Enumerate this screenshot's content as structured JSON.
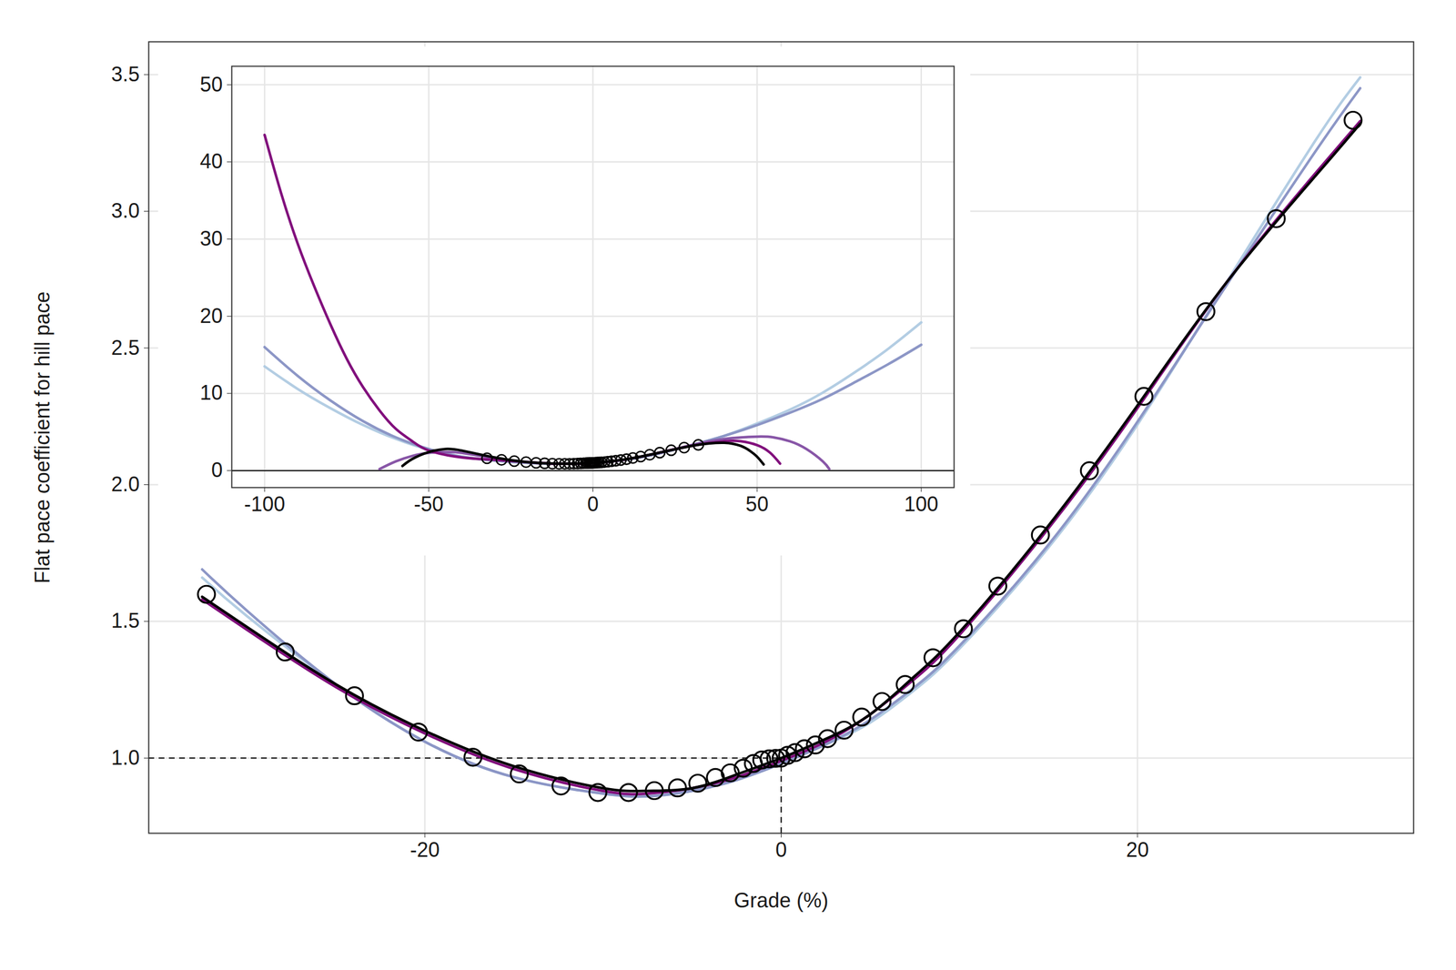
{
  "chart_data": [
    {
      "type": "line",
      "x_label": "Grade (%)",
      "y_label": "Flat pace coefficient for hill pace",
      "xlim": [
        -35.5,
        35.5
      ],
      "ylim": [
        0.725,
        3.62
      ],
      "xticks": [
        -20,
        0,
        20
      ],
      "yticks": [
        {
          "value": 1,
          "label": "1.0"
        },
        {
          "value": 1.5,
          "label": "1.5"
        },
        {
          "value": 2,
          "label": "2.0"
        },
        {
          "value": 2.5,
          "label": "2.5"
        },
        {
          "value": 3,
          "label": "3.0"
        },
        {
          "value": 3.5,
          "label": "3.5"
        }
      ],
      "grid": true,
      "reference_point": [
        0,
        1
      ],
      "series": [
        {
          "type": "line",
          "color": "#b3cde3",
          "line_style": "solid",
          "x": [
            -32.5,
            -30,
            -25,
            -20,
            -15,
            -10,
            -7.5,
            -5,
            -2.5,
            0,
            2.5,
            5,
            7.5,
            10,
            15,
            20,
            25,
            30,
            32.5
          ],
          "values": [
            1.66,
            1.52,
            1.27,
            1.06,
            0.93,
            0.87,
            0.86,
            0.88,
            0.92,
            0.98,
            1.05,
            1.13,
            1.25,
            1.4,
            1.77,
            2.22,
            2.74,
            3.26,
            3.49
          ]
        },
        {
          "type": "line",
          "color": "#8c96c6",
          "line_style": "solid",
          "x": [
            -32.5,
            -30,
            -25,
            -20,
            -15,
            -10,
            -7.5,
            -5,
            -2.5,
            0,
            2.5,
            5,
            7.5,
            10,
            15,
            20,
            25,
            30,
            32.5
          ],
          "values": [
            1.69,
            1.54,
            1.27,
            1.06,
            0.93,
            0.87,
            0.86,
            0.88,
            0.92,
            0.98,
            1.05,
            1.14,
            1.26,
            1.41,
            1.78,
            2.23,
            2.73,
            3.22,
            3.45
          ]
        },
        {
          "type": "line",
          "color": "#810f7c",
          "line_style": "solid",
          "x": [
            -32.5,
            -30,
            -25,
            -20,
            -15,
            -10,
            -7.5,
            -5,
            -2.5,
            0,
            2.5,
            5,
            7.5,
            10,
            15,
            20,
            25,
            30,
            32.5
          ],
          "values": [
            1.58,
            1.47,
            1.26,
            1.09,
            0.96,
            0.88,
            0.87,
            0.89,
            0.93,
            0.99,
            1.06,
            1.16,
            1.29,
            1.45,
            1.84,
            2.28,
            2.74,
            3.14,
            3.33
          ]
        },
        {
          "type": "line",
          "color": "#000000",
          "line_style": "solid",
          "x": [
            -32.5,
            -30,
            -25,
            -20,
            -15,
            -10,
            -7.5,
            -5,
            -2.5,
            0,
            2.5,
            5,
            7.5,
            10,
            15,
            20,
            25,
            30,
            32.5
          ],
          "values": [
            1.59,
            1.48,
            1.27,
            1.1,
            0.97,
            0.89,
            0.88,
            0.89,
            0.94,
            1.0,
            1.07,
            1.16,
            1.3,
            1.46,
            1.85,
            2.29,
            2.74,
            3.13,
            3.32
          ]
        },
        {
          "type": "scatter",
          "color": "#000000",
          "marker": "circle",
          "x": [
            -32.26,
            -27.84,
            -23.95,
            -20.36,
            -17.3,
            -14.7,
            -12.36,
            -10.29,
            -8.57,
            -7.12,
            -5.82,
            -4.68,
            -3.69,
            -2.86,
            -2.13,
            -1.56,
            -1.09,
            -0.68,
            -0.31,
            0,
            0.36,
            0.78,
            1.3,
            1.92,
            2.6,
            3.53,
            4.52,
            5.66,
            6.96,
            8.52,
            10.23,
            12.16,
            14.55,
            17.3,
            20.36,
            23.84,
            27.79,
            32.1
          ],
          "values": [
            1.599,
            1.388,
            1.228,
            1.095,
            1.003,
            0.942,
            0.898,
            0.874,
            0.874,
            0.881,
            0.891,
            0.908,
            0.929,
            0.946,
            0.963,
            0.98,
            0.993,
            0.997,
            0.999,
            1.0,
            1.01,
            1.02,
            1.034,
            1.048,
            1.071,
            1.102,
            1.15,
            1.207,
            1.269,
            1.367,
            1.473,
            1.629,
            1.816,
            2.051,
            2.323,
            2.633,
            2.973,
            3.333
          ]
        }
      ]
    },
    {
      "type": "line",
      "xlim": [
        -110,
        110
      ],
      "ylim": [
        -2.2,
        52.4
      ],
      "xticks": [
        -100,
        -50,
        0,
        50,
        100
      ],
      "yticks": [
        0,
        10,
        20,
        30,
        40,
        50
      ],
      "grid": true,
      "hline": 0,
      "series": [
        {
          "type": "line",
          "color": "#b3cde3",
          "line_style": "solid",
          "x": [
            -100,
            -90,
            -80,
            -70,
            -60,
            -50,
            -40,
            -30,
            -20,
            -10,
            0,
            10,
            20,
            30,
            40,
            50,
            60,
            70,
            80,
            90,
            100
          ],
          "values": [
            13.5,
            10.6,
            8.1,
            5.9,
            4.1,
            2.7,
            1.8,
            1.3,
            1.0,
            0.88,
            1.0,
            1.4,
            2.2,
            3.3,
            4.5,
            6.1,
            7.9,
            10.1,
            12.8,
            15.8,
            19.2
          ]
        },
        {
          "type": "line",
          "color": "#8c96c6",
          "line_style": "solid",
          "x": [
            -100,
            -90,
            -80,
            -70,
            -60,
            -50,
            -40,
            -30,
            -20,
            -10,
            0,
            10,
            20,
            30,
            40,
            50,
            60,
            70,
            80,
            90,
            100
          ],
          "values": [
            16.0,
            12.3,
            9.1,
            6.4,
            4.3,
            2.8,
            1.8,
            1.3,
            1.0,
            0.87,
            0.98,
            1.4,
            2.2,
            3.3,
            4.5,
            5.9,
            7.5,
            9.3,
            11.5,
            13.8,
            16.3
          ]
        },
        {
          "type": "line",
          "color": "#8856a7",
          "line_style": "solid",
          "x": [
            -65,
            -60,
            -55,
            -50,
            -45,
            -40,
            -30,
            -20,
            -10,
            0,
            10,
            20,
            30,
            40,
            50,
            55,
            60,
            65,
            70,
            72
          ],
          "values": [
            0.2,
            1.2,
            1.9,
            2.3,
            2.4,
            2.3,
            1.6,
            1.1,
            0.88,
            0.99,
            1.45,
            2.3,
            3.3,
            4.1,
            4.4,
            4.3,
            3.8,
            2.8,
            1.2,
            0.2
          ]
        },
        {
          "type": "line",
          "color": "#810f7c",
          "line_style": "solid",
          "x": [
            -100,
            -95,
            -90,
            -85,
            -80,
            -75,
            -70,
            -65,
            -60,
            -55,
            -50,
            -40,
            -30,
            -20,
            -10,
            0,
            10,
            20,
            30,
            40,
            45,
            50,
            54,
            57
          ],
          "values": [
            43.5,
            36,
            29.5,
            24,
            19,
            14.5,
            10.8,
            7.8,
            5.4,
            3.8,
            2.6,
            1.7,
            1.4,
            1.1,
            0.88,
            0.99,
            1.45,
            2.3,
            3.2,
            3.8,
            3.8,
            3.3,
            2.3,
            0.9
          ]
        },
        {
          "type": "line",
          "color": "#000000",
          "line_style": "solid",
          "x": [
            -58,
            -55,
            -50,
            -45,
            -40,
            -30,
            -20,
            -10,
            0,
            10,
            20,
            30,
            35,
            40,
            45,
            48,
            50,
            52
          ],
          "values": [
            0.6,
            1.5,
            2.4,
            2.8,
            2.6,
            1.7,
            1.1,
            0.89,
            1.0,
            1.46,
            2.3,
            3.2,
            3.5,
            3.6,
            3.2,
            2.5,
            1.8,
            0.8
          ]
        },
        {
          "type": "scatter",
          "color": "#000000",
          "marker": "circle",
          "x": [
            -32.26,
            -27.84,
            -23.95,
            -20.36,
            -17.3,
            -14.7,
            -12.36,
            -10.29,
            -8.57,
            -7.12,
            -5.82,
            -4.68,
            -3.69,
            -2.86,
            -2.13,
            -1.56,
            -1.09,
            -0.68,
            -0.31,
            0,
            0.36,
            0.78,
            1.3,
            1.92,
            2.6,
            3.53,
            4.52,
            5.66,
            6.96,
            8.52,
            10.23,
            12.16,
            14.55,
            17.3,
            20.36,
            23.84,
            27.79,
            32.1
          ],
          "values": [
            1.599,
            1.388,
            1.228,
            1.095,
            1.003,
            0.942,
            0.898,
            0.874,
            0.874,
            0.881,
            0.891,
            0.908,
            0.929,
            0.946,
            0.963,
            0.98,
            0.993,
            0.997,
            0.999,
            1.0,
            1.01,
            1.02,
            1.034,
            1.048,
            1.071,
            1.102,
            1.15,
            1.207,
            1.269,
            1.367,
            1.473,
            1.629,
            1.816,
            2.051,
            2.323,
            2.633,
            2.973,
            3.333
          ]
        }
      ]
    }
  ]
}
